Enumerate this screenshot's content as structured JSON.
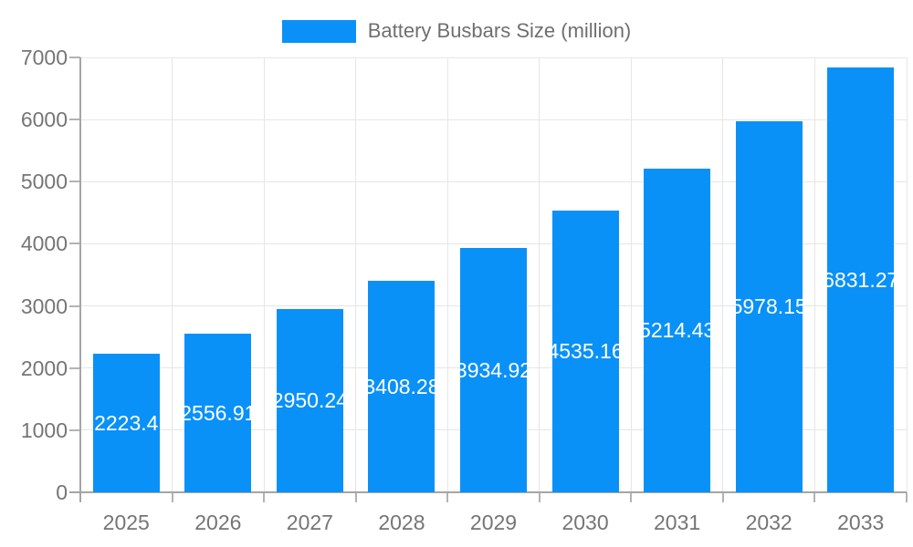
{
  "chart_data": {
    "type": "bar",
    "title": "Battery Busbars Size (million)",
    "categories": [
      "2025",
      "2026",
      "2027",
      "2028",
      "2029",
      "2030",
      "2031",
      "2032",
      "2033"
    ],
    "values": [
      2223.4,
      2556.91,
      2950.24,
      3408.28,
      3934.92,
      4535.16,
      5214.43,
      5978.15,
      6831.27
    ],
    "value_labels": [
      "2223.4",
      "2556.91",
      "2950.24",
      "3408.28",
      "3934.92",
      "4535.16",
      "5214.43",
      "5978.15",
      "6831.27"
    ],
    "xlabel": "",
    "ylabel": "",
    "ylim": [
      0,
      7000
    ],
    "yticks": [
      0,
      1000,
      2000,
      3000,
      4000,
      5000,
      6000,
      7000
    ],
    "ytick_labels": [
      "0",
      "1000",
      "2000",
      "3000",
      "4000",
      "5000",
      "6000",
      "7000"
    ],
    "grid": true,
    "legend_position": "top-center"
  },
  "legend": {
    "label": "Battery Busbars Size (million)",
    "swatch_color": "#0a91f8"
  },
  "colors": {
    "bar": "#0a91f8",
    "bar_value_text": "#ffffff",
    "axis_text": "#757575",
    "legend_text": "#6f6f6f",
    "gridline": "#e6e6e6",
    "axis_line": "#a5a5a5",
    "tick": "#b3b3b3",
    "background": "#ffffff"
  }
}
